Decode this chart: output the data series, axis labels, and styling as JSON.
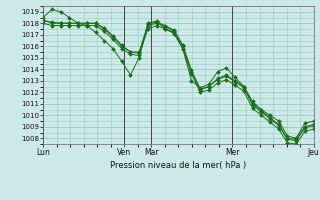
{
  "title": "",
  "xlabel": "Pression niveau de la mer( hPa )",
  "ylabel": "",
  "bg_color": "#cce8e8",
  "grid_color": "#99ccbb",
  "line_color": "#1a6e1a",
  "vline_color": "#333333",
  "ylim": [
    1007.5,
    1019.5
  ],
  "yticks": [
    1008,
    1009,
    1010,
    1011,
    1012,
    1013,
    1014,
    1015,
    1016,
    1017,
    1018,
    1019
  ],
  "day_labels": [
    "Lun",
    "Ven",
    "Mar",
    "Mer",
    "Jeu"
  ],
  "day_positions": [
    0.0,
    0.3,
    0.4,
    0.7,
    1.0
  ],
  "num_points": 32,
  "series": [
    [
      1018.5,
      1019.2,
      1019.0,
      1018.5,
      1018.0,
      1017.8,
      1017.2,
      1016.5,
      1015.8,
      1014.7,
      1013.5,
      1015.0,
      1018.0,
      1018.2,
      1017.5,
      1017.2,
      1015.8,
      1013.0,
      1012.4,
      1012.7,
      1013.8,
      1014.1,
      1013.3,
      1012.5,
      1011.2,
      1010.5,
      1010.0,
      1009.5,
      1008.2,
      1008.0,
      1009.3,
      1009.5
    ],
    [
      1018.3,
      1018.0,
      1018.0,
      1018.0,
      1018.0,
      1018.0,
      1018.0,
      1017.5,
      1016.8,
      1016.0,
      1015.5,
      1015.5,
      1017.8,
      1018.0,
      1017.7,
      1017.3,
      1016.0,
      1013.8,
      1012.2,
      1012.5,
      1013.2,
      1013.5,
      1013.0,
      1012.5,
      1011.0,
      1010.4,
      1009.8,
      1009.2,
      1008.0,
      1007.9,
      1009.0,
      1009.2
    ],
    [
      1018.2,
      1018.1,
      1018.0,
      1018.0,
      1018.0,
      1018.0,
      1018.0,
      1017.6,
      1016.9,
      1016.1,
      1015.5,
      1015.4,
      1017.9,
      1018.1,
      1017.8,
      1017.4,
      1016.1,
      1013.9,
      1012.3,
      1012.5,
      1013.1,
      1013.4,
      1012.9,
      1012.4,
      1010.9,
      1010.3,
      1009.7,
      1009.1,
      1007.9,
      1007.8,
      1008.9,
      1009.1
    ],
    [
      1018.0,
      1017.8,
      1017.8,
      1017.8,
      1017.8,
      1017.8,
      1017.8,
      1017.3,
      1016.6,
      1015.8,
      1015.3,
      1015.2,
      1017.5,
      1017.8,
      1017.5,
      1017.1,
      1015.8,
      1013.6,
      1012.0,
      1012.2,
      1012.8,
      1013.1,
      1012.6,
      1012.1,
      1010.6,
      1010.0,
      1009.4,
      1008.8,
      1007.6,
      1007.5,
      1008.6,
      1008.8
    ]
  ]
}
